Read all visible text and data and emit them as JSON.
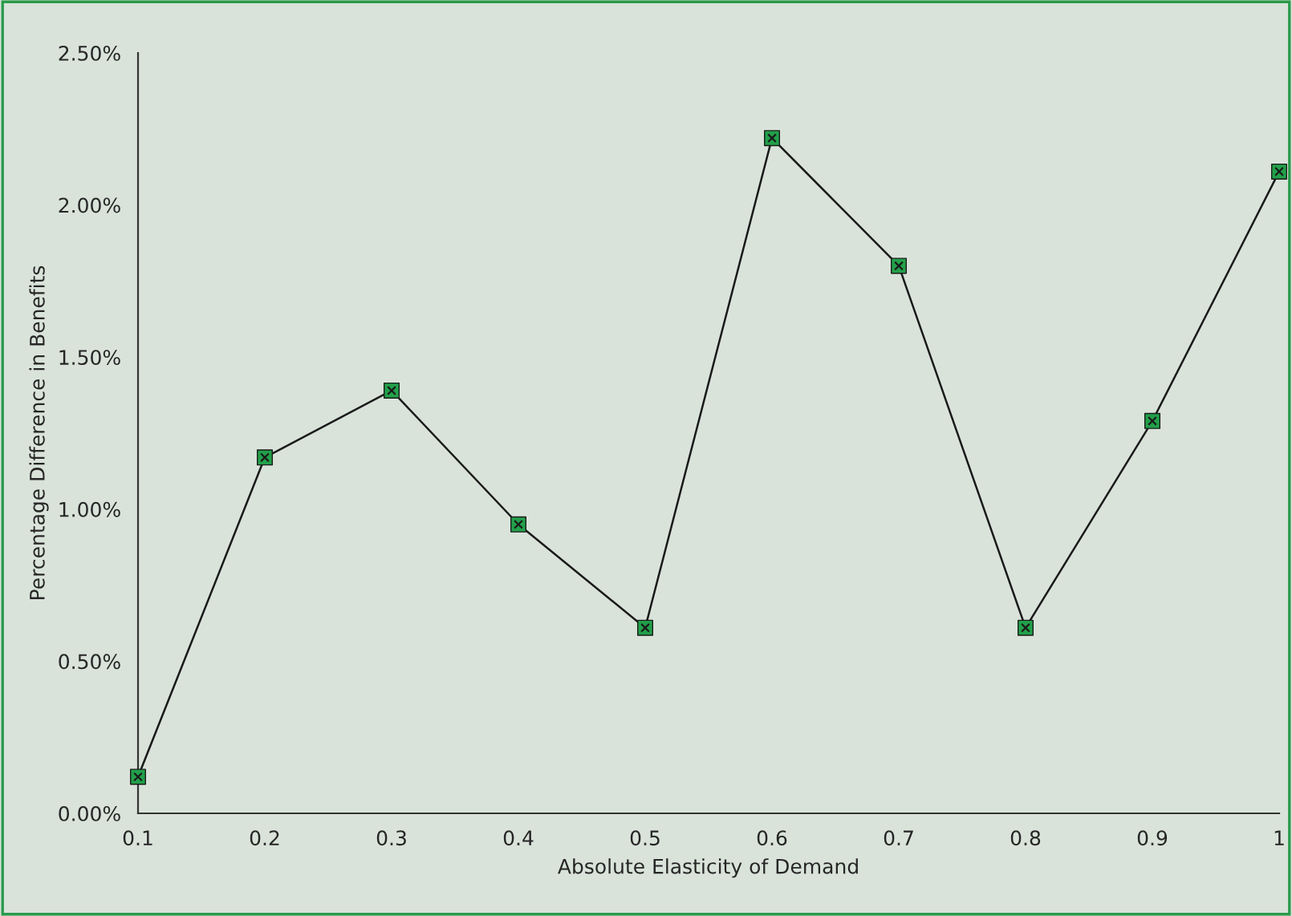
{
  "chart_data": {
    "type": "line",
    "xlabel": "Absolute Elasticity of Demand",
    "ylabel": "Percentage Difference in Benefits",
    "x": [
      0.1,
      0.2,
      0.3,
      0.4,
      0.5,
      0.6,
      0.7,
      0.8,
      0.9,
      1.0
    ],
    "series": [
      {
        "color": "#1a1a1a",
        "colors": [
          "#22a04a",
          "#22a04a",
          "#22a04a",
          "#22a04a",
          "#22a04a",
          "#22a04a",
          "#22a04a",
          "#22a04a",
          "#22a04a",
          "#22a04a"
        ],
        "values": [
          0.12,
          1.17,
          1.39,
          0.95,
          0.61,
          2.22,
          1.8,
          0.61,
          1.29,
          2.11
        ]
      }
    ],
    "xlim": [
      0.1,
      1.0
    ],
    "xticks": [
      0.1,
      0.2,
      0.3,
      0.4,
      0.5,
      0.6,
      0.7,
      0.8,
      0.9,
      1
    ],
    "ylim": [
      0,
      2.5
    ],
    "yticks": [
      {
        "value": 0,
        "label": "0.00%"
      },
      {
        "value": 0.5,
        "label": "0.50%"
      },
      {
        "value": 1.0,
        "label": "1.00%"
      },
      {
        "value": 1.5,
        "label": "1.50%"
      },
      {
        "value": 2.0,
        "label": "2.00%"
      },
      {
        "value": 2.5,
        "label": "2.50%"
      }
    ],
    "grid": false,
    "legend": false,
    "marker": "square",
    "line_style": "solid"
  }
}
